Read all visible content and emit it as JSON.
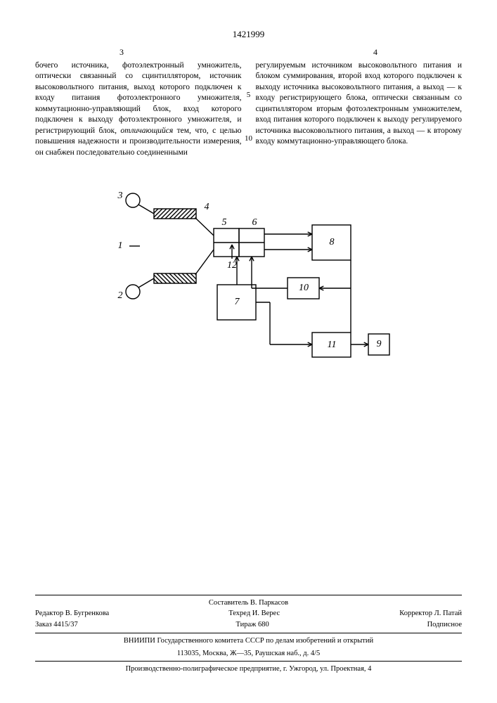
{
  "patent_number": "1421999",
  "col_left_no": "3",
  "col_right_no": "4",
  "line_marks": {
    "m5": "5",
    "m10": "10"
  },
  "left_text": "бочего источника, фотоэлектронный умножитель, оптически связанный со сцинтиллятором, источник высоковольтного питания, выход которого подключен к входу питания фотоэлектронного умножителя, коммутационно-управляющий блок, вход которого подключен к выходу фотоэлектронного умножителя, и регистрирующий блок, ",
  "left_text_em": "отличающийся",
  "left_text2": " тем, что, с целью повышения надежности и производительности измерения, он снабжен последовательно соединенными",
  "right_text": "регулируемым источником высоковольтного питания и блоком суммирования, второй вход которого подключен к выходу источника высоковольтного питания, а выход — к входу регистрирующего блока, оптически связанным со сцинтиллятором вторым фотоэлектронным умножителем, вход питания которого подключен к выходу регулируемого источника высоковольтного питания, а выход — к второму входу коммутационно-управляющего блока.",
  "diagram": {
    "labels": {
      "1": "1",
      "2": "2",
      "3": "3",
      "4": "4",
      "5": "5",
      "6": "6",
      "7": "7",
      "8": "8",
      "9": "9",
      "10": "10",
      "11": "11",
      "12": "12"
    },
    "stroke": "#000",
    "stroke_width": 1.4,
    "font_size": 14,
    "font_style": "italic"
  },
  "footer": {
    "compiler": "Составитель В. Паркасов",
    "editor": "Редактор В. Бугренкова",
    "techred": "Техред И. Верес",
    "corrector": "Корректор Л. Патай",
    "order": "Заказ 4415/37",
    "tirazh": "Тираж 680",
    "signed": "Подписное",
    "org1": "ВНИИПИ Государственного комитета СССР по делам изобретений и открытий",
    "addr1": "113035, Москва, Ж—35, Раушская наб., д. 4/5",
    "org2": "Производственно-полиграфическое предприятие, г. Ужгород, ул. Проектная, 4"
  }
}
